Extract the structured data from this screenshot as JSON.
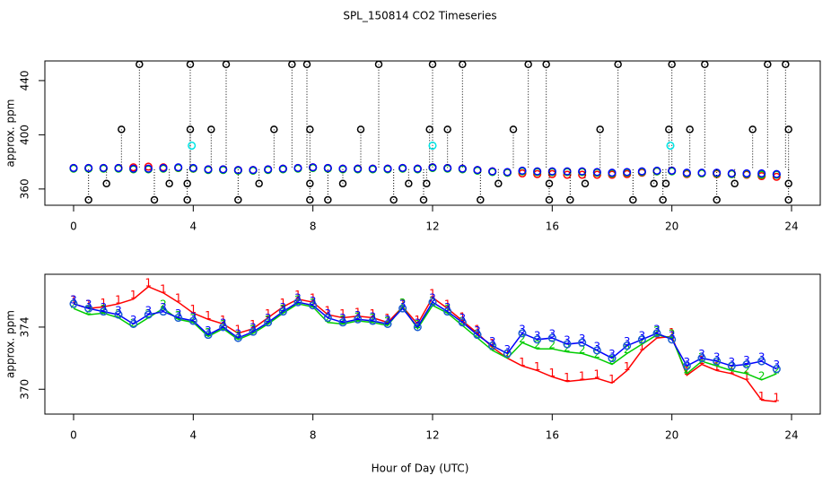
{
  "title": "SPL_150814  CO2 Timeseries",
  "xlabel": "Hour of Day (UTC)",
  "chart_data": [
    {
      "type": "scatter",
      "ylabel": "approx. ppm",
      "xlim": [
        -0.96,
        24.96
      ],
      "xticks": [
        0,
        4,
        8,
        12,
        16,
        20,
        24
      ],
      "ylim": [
        348,
        454.5
      ],
      "yticks": [
        360,
        400,
        440
      ],
      "x": [
        0,
        0.5,
        1,
        1.5,
        2,
        2.5,
        3,
        3.5,
        4,
        4.5,
        5,
        5.5,
        6,
        6.5,
        7,
        7.5,
        8,
        8.5,
        9,
        9.5,
        10,
        10.5,
        11,
        11.5,
        12,
        12.5,
        13,
        13.5,
        14,
        14.5,
        15,
        15.5,
        16,
        16.5,
        17,
        17.5,
        18,
        18.5,
        19,
        19.5,
        20,
        20.5,
        21,
        21.5,
        22,
        22.5,
        23,
        23.5
      ],
      "series": [
        {
          "color": "#ff0000",
          "marker": "circle",
          "values": [
            375.5,
            375.5,
            375.5,
            375.5,
            376,
            376.5,
            376,
            375.5,
            375,
            374.5,
            374.5,
            374,
            374,
            374.5,
            375,
            375.5,
            376,
            375.5,
            375,
            375,
            375,
            375,
            375.5,
            375,
            376,
            375.5,
            375,
            374,
            373,
            372,
            371.5,
            371,
            371,
            370.5,
            370.5,
            370.5,
            370.5,
            371,
            372,
            373,
            373.5,
            371,
            371.5,
            371,
            371,
            370.5,
            369.5,
            369
          ]
        },
        {
          "color": "#00cc00",
          "marker": "circle",
          "values": [
            375,
            375,
            375,
            375,
            374.5,
            374.5,
            375,
            375.5,
            375,
            374,
            374,
            373.5,
            373.5,
            374,
            374.5,
            375,
            375.5,
            375,
            374.5,
            374.5,
            374.5,
            374.5,
            375,
            374.5,
            375.5,
            375,
            374.5,
            373.5,
            372.5,
            372,
            373,
            372.5,
            372.5,
            372.5,
            372.5,
            372,
            371.5,
            372,
            372.5,
            373,
            373,
            371.5,
            371.5,
            371.5,
            371,
            371,
            370.5,
            370.5
          ]
        },
        {
          "color": "#0000ff",
          "marker": "circle",
          "values": [
            375.5,
            375.5,
            375.5,
            375.5,
            375,
            375,
            375.5,
            376,
            375.5,
            374.5,
            374.5,
            374,
            374,
            374.5,
            375,
            375.5,
            376,
            375.5,
            375,
            375,
            375,
            375,
            375.5,
            375,
            376,
            375.5,
            375,
            374,
            373,
            372.5,
            373.5,
            373,
            373,
            373,
            373,
            372.5,
            372,
            372.5,
            373,
            373.5,
            373.5,
            372,
            372,
            372,
            371.5,
            371.5,
            371.5,
            371
          ]
        },
        {
          "color": "#000000",
          "marker": "outlier",
          "x": [
            2.2,
            3.9,
            5.1,
            7.3,
            7.8,
            10.2,
            12.0,
            13.0,
            15.2,
            15.8,
            18.2,
            20.0,
            21.1,
            23.2,
            23.8,
            1.6,
            3.9,
            4.6,
            6.7,
            7.9,
            9.6,
            11.9,
            12.5,
            14.7,
            17.6,
            19.9,
            20.6,
            22.7,
            23.9,
            1.1,
            3.2,
            3.8,
            6.2,
            7.9,
            9.0,
            11.2,
            11.8,
            14.2,
            15.9,
            17.1,
            19.4,
            19.8,
            22.1,
            23.9,
            0.5,
            2.7,
            3.8,
            5.5,
            7.9,
            8.5,
            10.7,
            11.7,
            13.6,
            15.9,
            16.6,
            18.7,
            19.7,
            21.5,
            23.9
          ],
          "values": [
            452,
            452,
            452,
            452,
            452,
            452,
            452,
            452,
            452,
            452,
            452,
            452,
            452,
            452,
            452,
            404,
            404,
            404,
            404,
            404,
            404,
            404,
            404,
            404,
            404,
            404,
            404,
            404,
            404,
            364,
            364,
            364,
            364,
            364,
            364,
            364,
            364,
            364,
            364,
            364,
            364,
            364,
            364,
            364,
            352,
            352,
            352,
            352,
            352,
            352,
            352,
            352,
            352,
            352,
            352,
            352,
            352,
            352,
            352
          ]
        },
        {
          "color": "#00e5e5",
          "marker": "circle",
          "x": [
            3.95,
            12.0,
            19.95
          ],
          "values": [
            392,
            392,
            392
          ]
        }
      ]
    },
    {
      "type": "line",
      "ylabel": "approx. ppm",
      "xlim": [
        -0.96,
        24.96
      ],
      "xticks": [
        0,
        4,
        8,
        12,
        16,
        20,
        24
      ],
      "ylim": [
        368.4,
        377.4
      ],
      "yticks": [
        370,
        374
      ],
      "x": [
        0,
        0.5,
        1,
        1.5,
        2,
        2.5,
        3,
        3.5,
        4,
        4.5,
        5,
        5.5,
        6,
        6.5,
        7,
        7.5,
        8,
        8.5,
        9,
        9.5,
        10,
        10.5,
        11,
        11.5,
        12,
        12.5,
        13,
        13.5,
        14,
        14.5,
        15,
        15.5,
        16,
        16.5,
        17,
        17.5,
        18,
        18.5,
        19,
        19.5,
        20,
        20.5,
        21,
        21.5,
        22,
        22.5,
        23,
        23.5
      ],
      "series": [
        {
          "color": "#ff0000",
          "marker": "1",
          "values": [
            375.5,
            375.2,
            375.3,
            375.5,
            375.8,
            376.6,
            376.2,
            375.6,
            374.9,
            374.5,
            374.2,
            373.6,
            373.9,
            374.6,
            375.3,
            375.8,
            375.6,
            374.8,
            374.6,
            374.7,
            374.6,
            374.3,
            375.3,
            374.2,
            375.9,
            375.2,
            374.4,
            373.6,
            372.7,
            372.0,
            371.5,
            371.2,
            370.8,
            370.5,
            370.6,
            370.7,
            370.4,
            371.2,
            372.5,
            373.3,
            373.4,
            370.9,
            371.6,
            371.2,
            371.0,
            370.6,
            369.3,
            369.2
          ]
        },
        {
          "color": "#00cc00",
          "marker": "2",
          "values": [
            375.2,
            374.8,
            374.9,
            374.6,
            374.0,
            374.6,
            375.2,
            374.5,
            374.3,
            373.4,
            373.9,
            373.2,
            373.6,
            374.2,
            374.9,
            375.5,
            375.3,
            374.3,
            374.2,
            374.4,
            374.3,
            374.1,
            375.3,
            373.9,
            375.4,
            374.9,
            374.1,
            373.3,
            372.5,
            372.0,
            373.0,
            372.6,
            372.6,
            372.4,
            372.3,
            372.0,
            371.6,
            372.3,
            372.9,
            373.5,
            373.3,
            371.0,
            371.8,
            371.5,
            371.2,
            371.0,
            370.6,
            371.0
          ]
        },
        {
          "color": "#0000ff",
          "marker": "3",
          "values": [
            375.5,
            375.2,
            375.0,
            374.8,
            374.2,
            374.8,
            375.0,
            374.6,
            374.4,
            373.5,
            374.0,
            373.3,
            373.7,
            374.3,
            375.0,
            375.6,
            375.4,
            374.6,
            374.3,
            374.5,
            374.4,
            374.2,
            375.2,
            374.0,
            375.6,
            375.0,
            374.3,
            373.5,
            372.8,
            372.3,
            373.6,
            373.2,
            373.3,
            372.9,
            373.0,
            372.5,
            372.0,
            372.8,
            373.2,
            373.6,
            373.2,
            371.5,
            372.0,
            371.8,
            371.5,
            371.6,
            371.8,
            371.3
          ]
        }
      ]
    }
  ]
}
